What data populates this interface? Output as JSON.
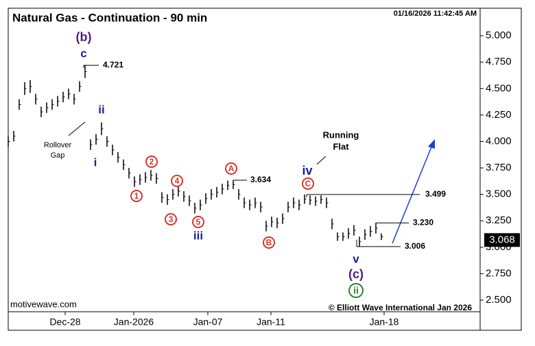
{
  "chart_data": {
    "type": "range-bars",
    "title": "Natural Gas - Continuation - 90 min",
    "timestamp": "01/16/2026 11:42:45 AM",
    "source": "motivewave.com",
    "copyright": "© Elliott Wave International Jan 2026",
    "color": "#000000",
    "x": [
      0,
      2,
      4,
      6,
      8,
      10,
      12,
      14,
      16,
      18,
      20,
      22,
      24,
      26,
      28,
      30,
      32,
      34,
      36,
      38,
      40,
      42,
      44,
      46,
      48,
      50,
      52,
      54,
      56,
      58,
      60,
      62,
      64,
      66,
      68,
      70,
      72,
      74,
      76,
      78,
      80,
      82,
      84,
      86,
      88,
      90,
      92,
      94,
      96,
      98,
      100,
      102,
      104,
      106,
      108,
      110,
      112,
      114,
      116,
      118,
      120,
      122,
      124,
      126,
      128,
      130,
      132,
      134,
      136
    ],
    "high": [
      4.05,
      4.1,
      4.4,
      4.56,
      4.58,
      4.45,
      4.33,
      4.37,
      4.4,
      4.43,
      4.47,
      4.5,
      4.45,
      4.57,
      4.721,
      4.02,
      4.07,
      4.18,
      4.05,
      3.97,
      3.9,
      3.83,
      3.75,
      3.67,
      3.69,
      3.71,
      3.73,
      3.7,
      3.52,
      3.5,
      3.55,
      3.58,
      3.53,
      3.49,
      3.42,
      3.45,
      3.51,
      3.55,
      3.57,
      3.6,
      3.63,
      3.634,
      3.55,
      3.47,
      3.45,
      3.47,
      3.43,
      3.25,
      3.29,
      3.28,
      3.32,
      3.43,
      3.47,
      3.45,
      3.499,
      3.49,
      3.48,
      3.49,
      3.47,
      3.27,
      3.14,
      3.14,
      3.18,
      3.21,
      3.1,
      3.17,
      3.2,
      3.23,
      3.13
    ],
    "low": [
      3.95,
      4.0,
      4.3,
      4.44,
      4.46,
      4.35,
      4.23,
      4.27,
      4.3,
      4.33,
      4.37,
      4.4,
      4.35,
      4.47,
      4.6,
      3.92,
      3.97,
      4.06,
      3.95,
      3.87,
      3.8,
      3.73,
      3.65,
      3.57,
      3.59,
      3.61,
      3.63,
      3.6,
      3.42,
      3.4,
      3.45,
      3.48,
      3.43,
      3.39,
      3.32,
      3.35,
      3.41,
      3.45,
      3.47,
      3.5,
      3.54,
      3.55,
      3.45,
      3.37,
      3.35,
      3.37,
      3.33,
      3.15,
      3.19,
      3.18,
      3.22,
      3.33,
      3.37,
      3.35,
      3.41,
      3.4,
      3.39,
      3.41,
      3.37,
      3.17,
      3.06,
      3.06,
      3.08,
      3.11,
      3.006,
      3.07,
      3.1,
      3.13,
      3.068
    ],
    "last_price": 3.068,
    "xlim": [
      0,
      172
    ],
    "xticks": [
      {
        "value": 20.75,
        "label": "Dec-28"
      },
      {
        "value": 45.75,
        "label": "Jan-2026"
      },
      {
        "value": 72.75,
        "label": "Jan-07"
      },
      {
        "value": 95.75,
        "label": "Jan-11"
      },
      {
        "value": 137,
        "label": "Jan-18"
      }
    ],
    "ylim": [
      2.39,
      5.26
    ],
    "yticks": [
      {
        "value": 2.5,
        "label": "2.500"
      },
      {
        "value": 2.75,
        "label": "2.750"
      },
      {
        "value": 3,
        "label": "3.000"
      },
      {
        "value": 3.25,
        "label": "3.250"
      },
      {
        "value": 3.5,
        "label": "3.500"
      },
      {
        "value": 3.75,
        "label": "3.750"
      },
      {
        "value": 4,
        "label": "4.000"
      },
      {
        "value": 4.25,
        "label": "4.250"
      },
      {
        "value": 4.5,
        "label": "4.500"
      },
      {
        "value": 4.75,
        "label": "4.750"
      },
      {
        "value": 5,
        "label": "5.000"
      }
    ],
    "levels": [
      {
        "value": 4.721,
        "label": "4.721"
      },
      {
        "value": 3.634,
        "label": "3.634"
      },
      {
        "value": 3.499,
        "label": "3.499"
      },
      {
        "value": 3.23,
        "label": "3.230"
      },
      {
        "value": 3.006,
        "label": "3.006"
      }
    ],
    "wave_labels": [
      {
        "text": "(b)",
        "color": "#4b1d7f"
      },
      {
        "text": "c",
        "color": "#1a1aa8"
      },
      {
        "text": "ii",
        "color": "#1a1aa8"
      },
      {
        "text": "i",
        "color": "#1a1aa8"
      },
      {
        "text": "1",
        "color": "#d9342b"
      },
      {
        "text": "2",
        "color": "#d9342b"
      },
      {
        "text": "3",
        "color": "#d9342b"
      },
      {
        "text": "4",
        "color": "#d9342b"
      },
      {
        "text": "5",
        "color": "#d9342b"
      },
      {
        "text": "iii",
        "color": "#1a1aa8"
      },
      {
        "text": "A",
        "color": "#d9342b"
      },
      {
        "text": "B",
        "color": "#d9342b"
      },
      {
        "text": "C",
        "color": "#d9342b"
      },
      {
        "text": "iv",
        "color": "#1a1aa8"
      },
      {
        "text": "v",
        "color": "#1a1aa8"
      },
      {
        "text": "(c)",
        "color": "#4b1d7f"
      },
      {
        "text": "ii",
        "color": "#2e7d32"
      }
    ],
    "notes": [
      {
        "lines": [
          "Rollover",
          "Gap"
        ]
      },
      {
        "lines": [
          "Running",
          "Flat"
        ]
      }
    ]
  }
}
